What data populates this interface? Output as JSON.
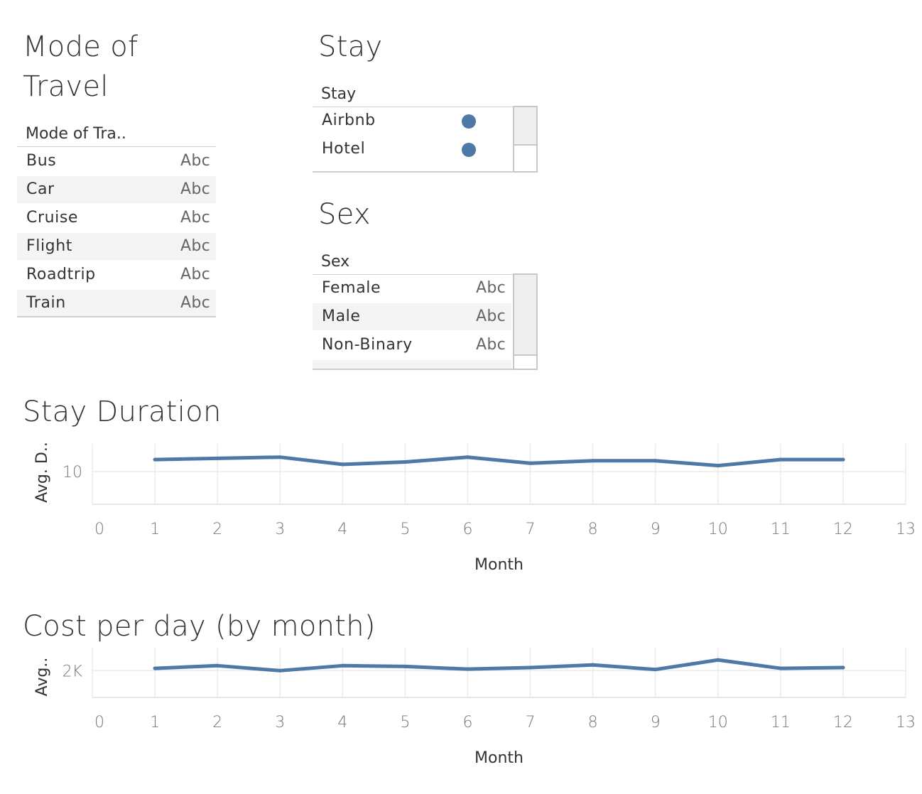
{
  "mode_of_travel": {
    "title_line1": "Mode of",
    "title_line2": "Travel",
    "column_header": "Mode of Tra..",
    "rows": [
      {
        "label": "Bus",
        "value": "Abc"
      },
      {
        "label": "Car",
        "value": "Abc"
      },
      {
        "label": "Cruise",
        "value": "Abc"
      },
      {
        "label": "Flight",
        "value": "Abc"
      },
      {
        "label": "Roadtrip",
        "value": "Abc"
      },
      {
        "label": "Train",
        "value": "Abc"
      }
    ]
  },
  "stay": {
    "title": "Stay",
    "column_header": "Stay",
    "rows": [
      {
        "label": "Airbnb"
      },
      {
        "label": "Hotel"
      }
    ]
  },
  "sex": {
    "title": "Sex",
    "column_header": "Sex",
    "rows": [
      {
        "label": "Female",
        "value": "Abc"
      },
      {
        "label": "Male",
        "value": "Abc"
      },
      {
        "label": "Non-Binary",
        "value": "Abc"
      }
    ]
  },
  "colors": {
    "accent": "#4e79a7",
    "grid": "#ebebeb",
    "shade": "#f4f4f4"
  },
  "chart_data": [
    {
      "type": "line",
      "title": "Stay Duration",
      "xlabel": "Month",
      "ylabel": "Avg. D..",
      "x": [
        1,
        2,
        3,
        4,
        5,
        6,
        7,
        8,
        9,
        10,
        11,
        12
      ],
      "values": [
        11.0,
        11.1,
        11.2,
        10.6,
        10.8,
        11.2,
        10.7,
        10.9,
        10.9,
        10.5,
        11.0,
        11.0
      ],
      "xlim": [
        0,
        13
      ],
      "xticks": [
        "0",
        "1",
        "2",
        "3",
        "4",
        "5",
        "6",
        "7",
        "8",
        "9",
        "10",
        "11",
        "12",
        "13"
      ],
      "ylim": [
        7.3,
        12.3
      ],
      "yticks": [
        {
          "value": 10,
          "label": "10"
        }
      ],
      "grid": true
    },
    {
      "type": "line",
      "title": "Cost per day (by month)",
      "xlabel": "Month",
      "ylabel": "Avg..",
      "x": [
        1,
        2,
        3,
        4,
        5,
        6,
        7,
        8,
        9,
        10,
        11,
        12
      ],
      "values": [
        2060,
        2130,
        2000,
        2130,
        2110,
        2040,
        2080,
        2150,
        2030,
        2280,
        2060,
        2080
      ],
      "xlim": [
        0,
        13
      ],
      "xticks": [
        "0",
        "1",
        "2",
        "3",
        "4",
        "5",
        "6",
        "7",
        "8",
        "9",
        "10",
        "11",
        "12",
        "13"
      ],
      "ylim": [
        1300,
        2600
      ],
      "yticks": [
        {
          "value": 2000,
          "label": "2K"
        }
      ],
      "grid": true
    }
  ]
}
